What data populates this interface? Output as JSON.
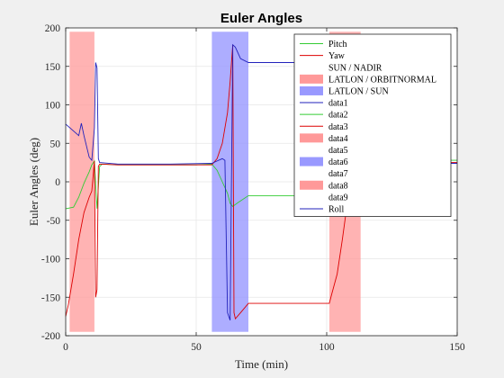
{
  "chart_data": {
    "type": "line",
    "title": "Euler Angles",
    "xlabel": "Time (min)",
    "ylabel": "Euler Angles (deg)",
    "xlim": [
      0,
      150
    ],
    "ylim": [
      -200,
      200
    ],
    "xticks": [
      0,
      50,
      100,
      150
    ],
    "yticks": [
      -200,
      -150,
      -100,
      -50,
      0,
      50,
      100,
      150,
      200
    ],
    "grid": true,
    "legend_position": "top-right",
    "shaded_regions": [
      {
        "name": "LATLON / ORBITNORMAL",
        "x": [
          1.5,
          11
        ],
        "color": "#ff9999",
        "opacity": 0.75
      },
      {
        "name": "LATLON / SUN",
        "x": [
          56,
          70
        ],
        "color": "#9999ff",
        "opacity": 0.8
      },
      {
        "name": "data8",
        "x": [
          101,
          113
        ],
        "color": "#ff9999",
        "opacity": 0.75
      }
    ],
    "series": [
      {
        "name": "Pitch",
        "color": "#33cc33",
        "points": [
          [
            0,
            -35
          ],
          [
            3,
            -33
          ],
          [
            5,
            -20
          ],
          [
            7,
            -2
          ],
          [
            9,
            13
          ],
          [
            10,
            22
          ],
          [
            11,
            27
          ],
          [
            12,
            -35
          ],
          [
            13,
            20
          ],
          [
            14,
            23
          ],
          [
            20,
            22
          ],
          [
            30,
            22
          ],
          [
            40,
            22
          ],
          [
            50,
            22
          ],
          [
            56,
            23
          ],
          [
            58,
            15
          ],
          [
            60,
            0
          ],
          [
            62,
            -15
          ],
          [
            63,
            -28
          ],
          [
            64,
            -32
          ],
          [
            66,
            -27
          ],
          [
            70,
            -18
          ],
          [
            90,
            -18
          ],
          [
            101,
            -17
          ],
          [
            102,
            -14
          ],
          [
            105,
            0
          ],
          [
            108,
            18
          ],
          [
            111,
            27
          ],
          [
            113,
            28
          ],
          [
            130,
            28
          ],
          [
            150,
            28
          ]
        ]
      },
      {
        "name": "Yaw",
        "color": "#dd0000",
        "points": [
          [
            0,
            -175
          ],
          [
            1,
            -160
          ],
          [
            3,
            -120
          ],
          [
            5,
            -75
          ],
          [
            7,
            -40
          ],
          [
            9,
            -20
          ],
          [
            10,
            -12
          ],
          [
            11,
            27
          ],
          [
            11.5,
            -150
          ],
          [
            12,
            -140
          ],
          [
            12.5,
            20
          ],
          [
            13,
            23
          ],
          [
            20,
            22
          ],
          [
            40,
            22
          ],
          [
            56,
            22
          ],
          [
            58,
            30
          ],
          [
            60,
            50
          ],
          [
            62,
            90
          ],
          [
            63,
            130
          ],
          [
            64,
            178
          ],
          [
            64.5,
            -170
          ],
          [
            65,
            -178
          ],
          [
            67,
            -170
          ],
          [
            70,
            -158
          ],
          [
            80,
            -158
          ],
          [
            101,
            -158
          ],
          [
            102,
            -145
          ],
          [
            104,
            -120
          ],
          [
            106,
            -75
          ],
          [
            108,
            -25
          ],
          [
            110,
            5
          ],
          [
            112,
            20
          ],
          [
            114,
            25
          ],
          [
            130,
            25
          ],
          [
            150,
            25
          ]
        ]
      },
      {
        "name": "Roll",
        "color": "#2222bb",
        "points": [
          [
            0,
            75
          ],
          [
            3,
            66
          ],
          [
            5,
            60
          ],
          [
            6,
            76
          ],
          [
            7,
            60
          ],
          [
            9,
            32
          ],
          [
            10,
            28
          ],
          [
            11,
            70
          ],
          [
            11.5,
            155
          ],
          [
            12,
            148
          ],
          [
            12.5,
            30
          ],
          [
            13,
            25
          ],
          [
            20,
            23
          ],
          [
            40,
            23
          ],
          [
            56,
            24
          ],
          [
            58,
            27
          ],
          [
            60,
            30
          ],
          [
            61,
            28
          ],
          [
            62,
            -170
          ],
          [
            63,
            -180
          ],
          [
            64,
            178
          ],
          [
            65,
            175
          ],
          [
            67,
            160
          ],
          [
            70,
            155
          ],
          [
            100,
            155
          ],
          [
            101,
            158
          ],
          [
            102,
            140
          ],
          [
            105,
            100
          ],
          [
            108,
            50
          ],
          [
            110,
            30
          ],
          [
            113,
            24
          ],
          [
            130,
            24
          ],
          [
            150,
            24
          ]
        ]
      }
    ]
  },
  "legend": {
    "items": [
      {
        "label": "Pitch",
        "kind": "line",
        "color": "#33cc33"
      },
      {
        "label": "Yaw",
        "kind": "line",
        "color": "#dd0000"
      },
      {
        "label": "SUN / NADIR",
        "kind": "none"
      },
      {
        "label": "LATLON / ORBITNORMAL",
        "kind": "patch",
        "color": "#ff9999"
      },
      {
        "label": "LATLON / SUN",
        "kind": "patch",
        "color": "#9999ff"
      },
      {
        "label": "data1",
        "kind": "line",
        "color": "#2222bb"
      },
      {
        "label": "data2",
        "kind": "line",
        "color": "#33cc33"
      },
      {
        "label": "data3",
        "kind": "line",
        "color": "#dd0000"
      },
      {
        "label": "data4",
        "kind": "patch",
        "color": "#ff9999"
      },
      {
        "label": "data5",
        "kind": "none"
      },
      {
        "label": "data6",
        "kind": "patch",
        "color": "#9999ff"
      },
      {
        "label": "data7",
        "kind": "none"
      },
      {
        "label": "data8",
        "kind": "patch",
        "color": "#ff9999"
      },
      {
        "label": "data9",
        "kind": "none"
      },
      {
        "label": "Roll",
        "kind": "line",
        "color": "#2222bb"
      }
    ]
  }
}
